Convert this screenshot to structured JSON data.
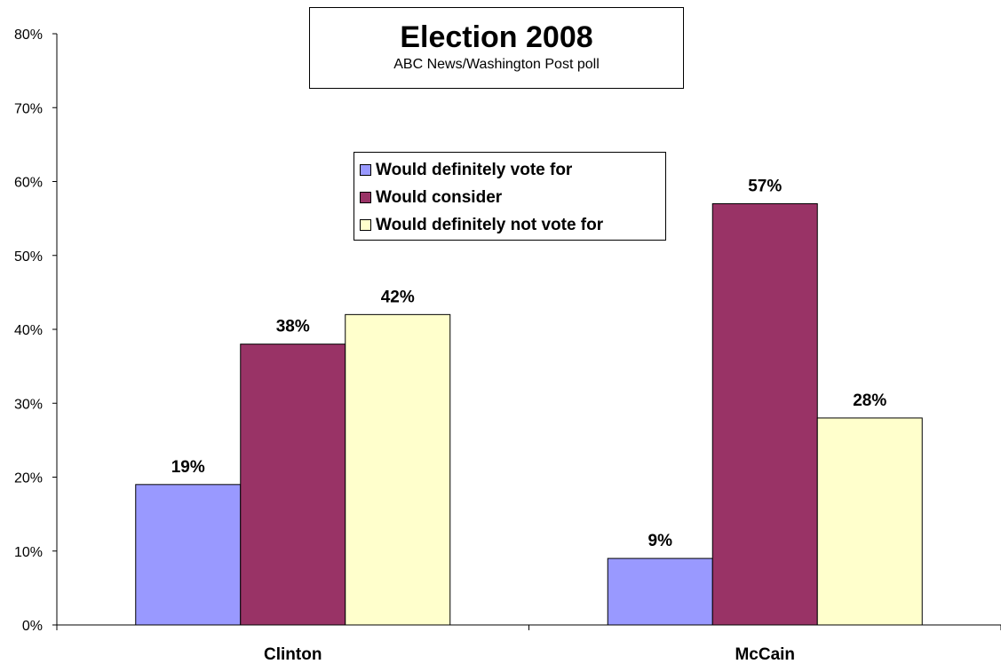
{
  "chart_data": {
    "type": "bar",
    "title": "Election 2008",
    "subtitle": "ABC News/Washington Post poll",
    "categories": [
      "Clinton",
      "McCain"
    ],
    "series": [
      {
        "name": "Would definitely vote for",
        "values": [
          19,
          9
        ],
        "color": "#9999ff"
      },
      {
        "name": "Would consider",
        "values": [
          38,
          57
        ],
        "color": "#993366"
      },
      {
        "name": "Would definitely not vote for",
        "values": [
          42,
          28
        ],
        "color": "#ffffcc"
      }
    ],
    "data_labels": [
      [
        "19%",
        "9%"
      ],
      [
        "38%",
        "57%"
      ],
      [
        "42%",
        "28%"
      ]
    ],
    "yticks": [
      "0%",
      "10%",
      "20%",
      "30%",
      "40%",
      "50%",
      "60%",
      "70%",
      "80%"
    ],
    "ylim": [
      0,
      80
    ],
    "y_unit": "%",
    "grid": false,
    "legend_position": "inside-center"
  }
}
